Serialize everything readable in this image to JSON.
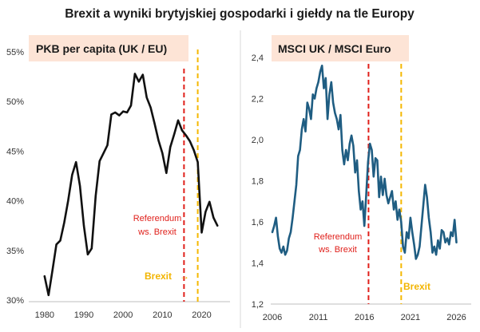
{
  "title": "Brexit a wyniki brytyjskiej gospodarki i giełdy na tle Europy",
  "colors": {
    "left_line": "#111111",
    "right_line": "#1f5d82",
    "referendum": "#e0201b",
    "brexit": "#f5b800",
    "title_box": "#fde4d6"
  },
  "chart_data": [
    {
      "type": "line",
      "title": "PKB per capita (UK / EU)",
      "xlabel": "",
      "ylabel": "",
      "xlim": [
        1978,
        2026
      ],
      "ylim": [
        30,
        55
      ],
      "x_ticks": [
        1980,
        1990,
        2000,
        2010,
        2020
      ],
      "y_ticks": [
        30,
        35,
        40,
        45,
        50,
        55
      ],
      "y_tick_labels": [
        "30%",
        "35%",
        "40%",
        "45%",
        "50%",
        "55%"
      ],
      "grid": false,
      "series": [
        {
          "x": [
            1980,
            1981,
            1982,
            1983,
            1984,
            1985,
            1986,
            1987,
            1988,
            1989,
            1990,
            1991,
            1992,
            1993,
            1994,
            1995,
            1996,
            1997,
            1998,
            1999,
            2000,
            2001,
            2002,
            2003,
            2004,
            2005,
            2006,
            2007,
            2008,
            2009,
            2010,
            2011,
            2012,
            2013,
            2014,
            2015,
            2016,
            2017,
            2018,
            2019,
            2020,
            2021,
            2022,
            2023,
            2024
          ],
          "values": [
            32.4,
            30.5,
            33.0,
            35.6,
            36.0,
            37.8,
            40.0,
            42.6,
            43.9,
            41.5,
            37.5,
            34.6,
            35.2,
            40.5,
            44.0,
            44.8,
            45.6,
            48.7,
            48.9,
            48.6,
            49.0,
            48.9,
            49.6,
            52.8,
            52.0,
            52.7,
            50.4,
            49.4,
            47.8,
            46.1,
            44.8,
            42.8,
            45.4,
            46.7,
            48.1,
            47.1,
            46.6,
            46.0,
            45.1,
            43.9,
            36.8,
            38.9,
            39.9,
            38.3,
            37.5
          ]
        }
      ],
      "annotations": [
        {
          "type": "vline",
          "x": 2015.5,
          "style": "dashed",
          "color": "#e0201b",
          "label": "Referendum ws. Brexit"
        },
        {
          "type": "vline",
          "x": 2019,
          "style": "dashed",
          "color": "#f5b800",
          "label": "Brexit",
          "arrow": "→"
        }
      ]
    },
    {
      "type": "line",
      "title": "MSCI UK / MSCI Euro",
      "xlabel": "",
      "ylabel": "",
      "xlim": [
        2006,
        2027
      ],
      "ylim": [
        1.2,
        2.4
      ],
      "x_ticks": [
        2006,
        2011,
        2016,
        2021,
        2026
      ],
      "y_ticks": [
        1.2,
        1.4,
        1.6,
        1.8,
        2.0,
        2.2,
        2.4
      ],
      "y_tick_labels": [
        "1,2",
        "1,4",
        "1,6",
        "1,8",
        "2,0",
        "2,2",
        "2,4"
      ],
      "grid": false,
      "series": [
        {
          "x": [
            2006.0,
            2006.2,
            2006.4,
            2006.6,
            2006.8,
            2007.0,
            2007.2,
            2007.4,
            2007.6,
            2007.8,
            2008.0,
            2008.2,
            2008.4,
            2008.6,
            2008.8,
            2009.0,
            2009.2,
            2009.4,
            2009.6,
            2009.8,
            2010.0,
            2010.2,
            2010.4,
            2010.6,
            2010.8,
            2011.0,
            2011.2,
            2011.4,
            2011.6,
            2011.8,
            2012.0,
            2012.2,
            2012.4,
            2012.6,
            2012.8,
            2013.0,
            2013.2,
            2013.4,
            2013.6,
            2013.8,
            2014.0,
            2014.2,
            2014.4,
            2014.6,
            2014.8,
            2015.0,
            2015.2,
            2015.4,
            2015.6,
            2015.8,
            2016.0,
            2016.2,
            2016.4,
            2016.6,
            2016.8,
            2017.0,
            2017.2,
            2017.4,
            2017.6,
            2017.8,
            2018.0,
            2018.2,
            2018.4,
            2018.6,
            2018.8,
            2019.0,
            2019.2,
            2019.4,
            2019.6,
            2019.8,
            2020.0,
            2020.2,
            2020.4,
            2020.6,
            2020.8,
            2021.0,
            2021.2,
            2021.4,
            2021.6,
            2021.8,
            2022.0,
            2022.2,
            2022.4,
            2022.6,
            2022.8,
            2023.0,
            2023.2,
            2023.4,
            2023.6,
            2023.8,
            2024.0,
            2024.2,
            2024.4,
            2024.6,
            2024.8,
            2025.0,
            2025.2,
            2025.4,
            2025.6,
            2025.8,
            2026.0
          ],
          "values": [
            1.55,
            1.58,
            1.62,
            1.53,
            1.47,
            1.45,
            1.48,
            1.44,
            1.46,
            1.52,
            1.55,
            1.62,
            1.7,
            1.78,
            1.92,
            1.95,
            2.05,
            2.1,
            2.04,
            2.18,
            2.15,
            2.1,
            2.22,
            2.2,
            2.25,
            2.28,
            2.33,
            2.36,
            2.25,
            2.3,
            2.1,
            2.22,
            2.28,
            2.18,
            2.13,
            2.1,
            2.05,
            2.12,
            1.95,
            1.88,
            1.95,
            1.9,
            1.98,
            2.02,
            1.97,
            1.84,
            1.9,
            1.75,
            1.66,
            1.7,
            1.58,
            1.73,
            1.89,
            1.98,
            1.95,
            1.82,
            1.91,
            1.9,
            1.72,
            1.82,
            1.73,
            1.81,
            1.73,
            1.69,
            1.72,
            1.75,
            1.66,
            1.7,
            1.61,
            1.66,
            1.6,
            1.48,
            1.45,
            1.55,
            1.52,
            1.62,
            1.55,
            1.49,
            1.42,
            1.44,
            1.48,
            1.58,
            1.68,
            1.78,
            1.72,
            1.62,
            1.55,
            1.45,
            1.48,
            1.44,
            1.51,
            1.47,
            1.56,
            1.55,
            1.5,
            1.52,
            1.49,
            1.55,
            1.53,
            1.61,
            1.5
          ]
        }
      ],
      "annotations": [
        {
          "type": "vline",
          "x": 2016.45,
          "style": "dashed",
          "color": "#e0201b",
          "label": "Referendum ws. Brexit"
        },
        {
          "type": "vline",
          "x": 2020.0,
          "style": "dashed",
          "color": "#f5b800",
          "label": "Brexit"
        }
      ]
    }
  ],
  "left": {
    "title": "PKB per capita (UK / EU)",
    "ref_label_1": "Referendum",
    "ref_label_2": "ws. Brexit",
    "brexit_label": "Brexit",
    "brexit_arrow": "→"
  },
  "right": {
    "title": "MSCI UK / MSCI Euro",
    "ref_label_1": "Referendum",
    "ref_label_2": "ws. Brexit",
    "brexit_label": "Brexit"
  }
}
